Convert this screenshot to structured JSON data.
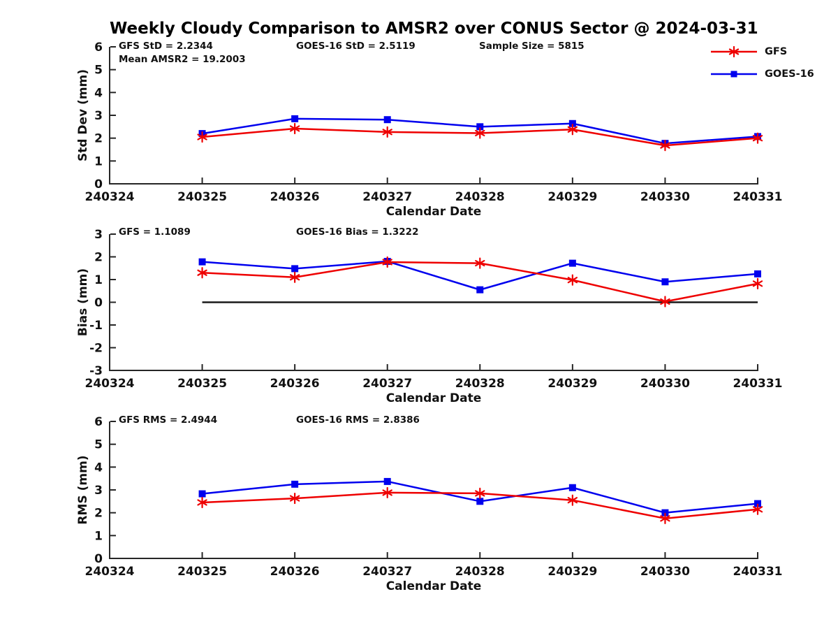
{
  "title": "Weekly Cloudy Comparison to AMSR2 over CONUS Sector @ 2024-03-31",
  "xlabel": "Calendar Date",
  "x_tick_labels": [
    "240324",
    "240325",
    "240326",
    "240327",
    "240328",
    "240329",
    "240330",
    "240331"
  ],
  "x_data_labels": [
    "240325",
    "240326",
    "240327",
    "240328",
    "240329",
    "240330",
    "240331"
  ],
  "colors": {
    "gfs": "#ee0000",
    "goes16": "#0000ee",
    "axis": "#262626",
    "zero_line": "#1a1a1a",
    "text": "#111111"
  },
  "legend": {
    "items": [
      {
        "key": "gfs",
        "label": "GFS",
        "marker": "asterisk"
      },
      {
        "key": "goes16",
        "label": "GOES-16",
        "marker": "square"
      }
    ]
  },
  "chart_data": [
    {
      "type": "line",
      "ylabel": "Std Dev (mm)",
      "ylim": [
        0,
        6
      ],
      "yticks": [
        0,
        1,
        2,
        3,
        4,
        5,
        6
      ],
      "zero_line": false,
      "annotations": [
        "GFS StD = 2.2344",
        "Mean AMSR2 = 19.2003",
        "GOES-16 StD = 2.5119",
        "Sample Size = 5815"
      ],
      "series": [
        {
          "key": "gfs",
          "name": "GFS",
          "marker": "asterisk",
          "values": [
            2.05,
            2.42,
            2.27,
            2.22,
            2.38,
            1.68,
            2.0
          ]
        },
        {
          "key": "goes16",
          "name": "GOES-16",
          "marker": "square",
          "values": [
            2.2,
            2.85,
            2.81,
            2.5,
            2.64,
            1.77,
            2.07
          ]
        }
      ]
    },
    {
      "type": "line",
      "ylabel": "Bias (mm)",
      "ylim": [
        -3,
        3
      ],
      "yticks": [
        -3,
        -2,
        -1,
        0,
        1,
        2,
        3
      ],
      "zero_line": true,
      "annotations": [
        "GFS = 1.1089",
        "GOES-16 Bias  = 1.3222"
      ],
      "series": [
        {
          "key": "gfs",
          "name": "GFS",
          "marker": "asterisk",
          "values": [
            1.3,
            1.1,
            1.77,
            1.72,
            0.98,
            0.03,
            0.82
          ]
        },
        {
          "key": "goes16",
          "name": "GOES-16",
          "marker": "square",
          "values": [
            1.78,
            1.48,
            1.8,
            0.55,
            1.72,
            0.9,
            1.25
          ]
        }
      ]
    },
    {
      "type": "line",
      "ylabel": "RMS (mm)",
      "ylim": [
        0,
        6
      ],
      "yticks": [
        0,
        1,
        2,
        3,
        4,
        5,
        6
      ],
      "zero_line": false,
      "annotations": [
        "GFS RMS = 2.4944",
        "GOES-16 RMS = 2.8386"
      ],
      "series": [
        {
          "key": "gfs",
          "name": "GFS",
          "marker": "asterisk",
          "values": [
            2.45,
            2.63,
            2.88,
            2.85,
            2.55,
            1.75,
            2.15
          ]
        },
        {
          "key": "goes16",
          "name": "GOES-16",
          "marker": "square",
          "values": [
            2.83,
            3.25,
            3.37,
            2.5,
            3.1,
            2.0,
            2.4
          ]
        }
      ]
    }
  ]
}
